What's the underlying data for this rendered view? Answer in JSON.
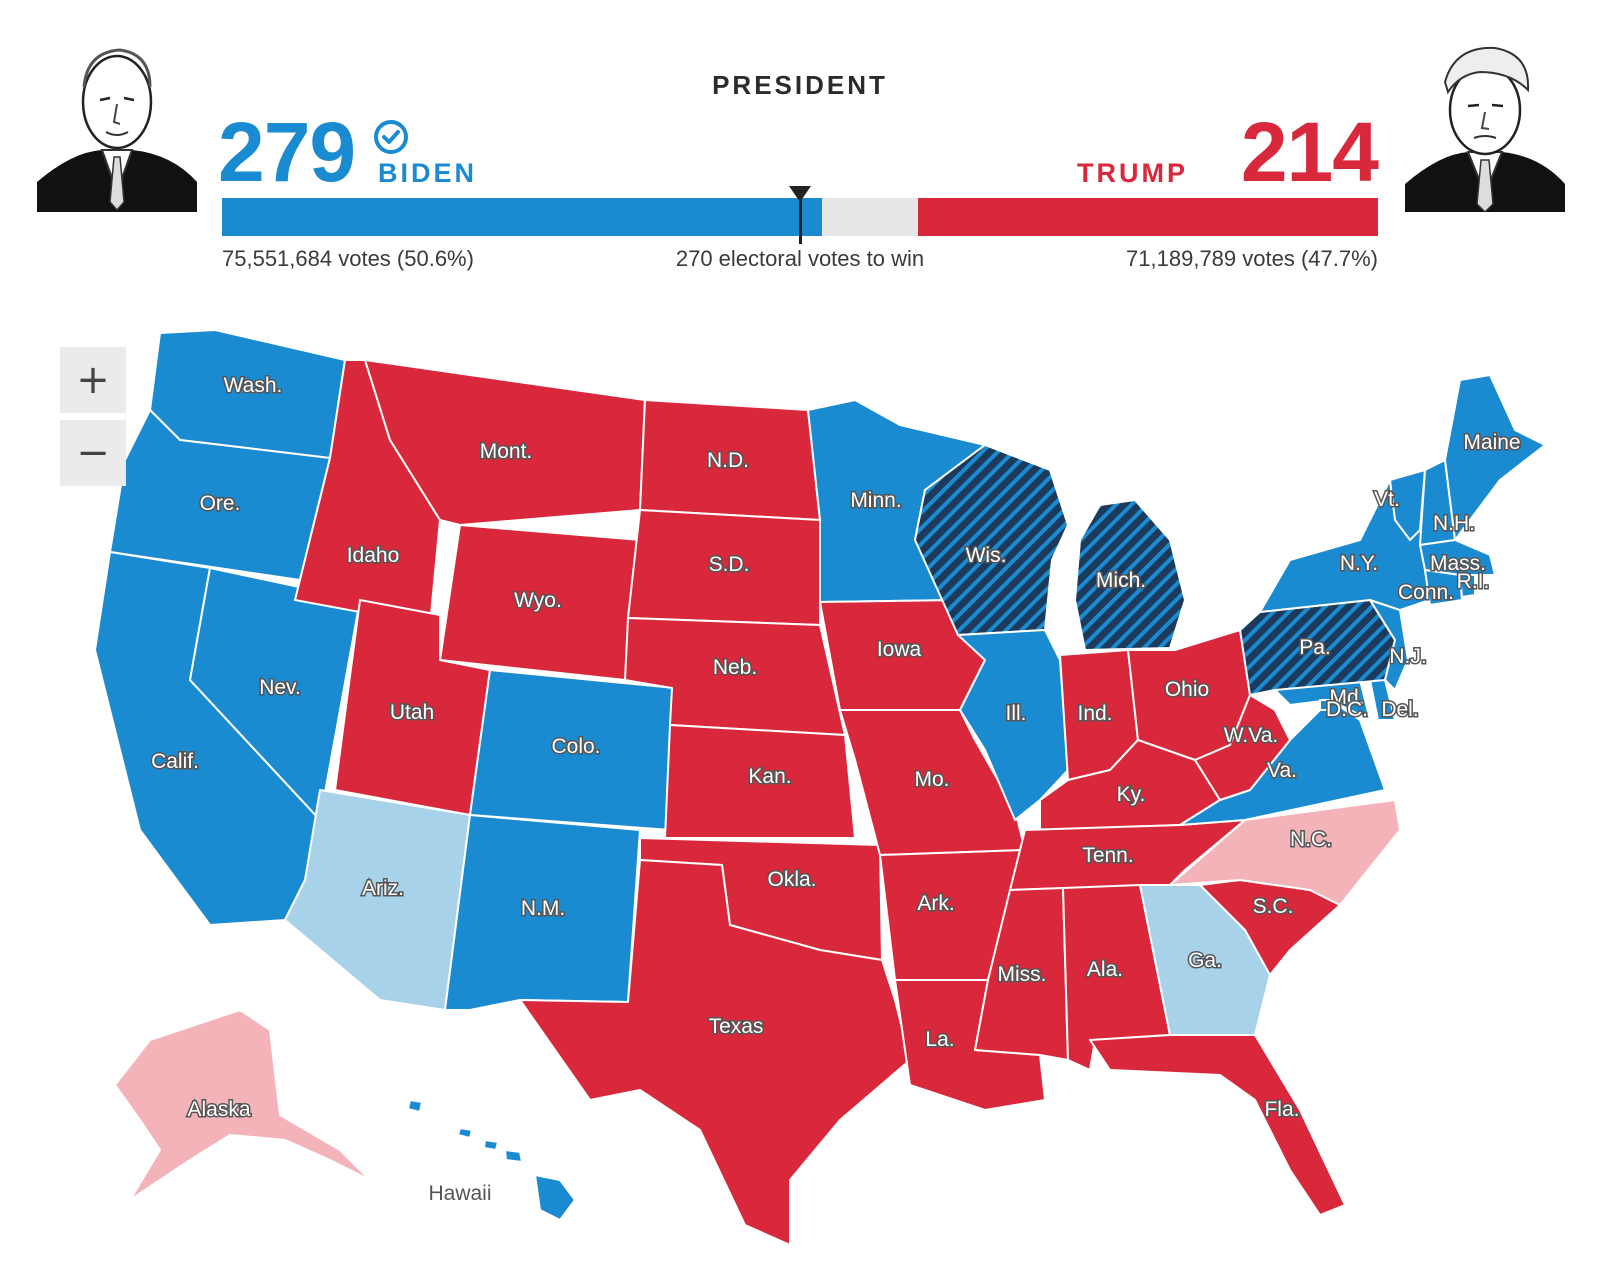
{
  "header": {
    "title": "PRESIDENT",
    "threshold_text": "270 electoral votes to win",
    "threshold_votes": 270,
    "total_electoral_votes": 538
  },
  "candidates": [
    {
      "id": "biden",
      "name": "BIDEN",
      "electoral_votes": "279",
      "votes_text": "75,551,684 votes (50.6%)",
      "color": "#1b8bd1",
      "winner": true,
      "icon": "check-badge-icon"
    },
    {
      "id": "trump",
      "name": "TRUMP",
      "electoral_votes": "214",
      "votes_text": "71,189,789 votes (47.7%)",
      "color": "#d9283b",
      "winner": false
    }
  ],
  "map": {
    "zoom_in_label": "+",
    "zoom_out_label": "−",
    "legend_colors": {
      "dem_won": "#1b8bd1",
      "dem_leading": "#a8d2ea",
      "rep_won": "#d9283b",
      "rep_leading": "#f4b3b8",
      "flipped_pending": "#1b3a5c"
    },
    "states": [
      {
        "abbr": "Wash.",
        "status": "dem_won"
      },
      {
        "abbr": "Ore.",
        "status": "dem_won"
      },
      {
        "abbr": "Calif.",
        "status": "dem_won"
      },
      {
        "abbr": "Nev.",
        "status": "dem_won"
      },
      {
        "abbr": "Idaho",
        "status": "rep_won"
      },
      {
        "abbr": "Mont.",
        "status": "rep_won"
      },
      {
        "abbr": "Wyo.",
        "status": "rep_won"
      },
      {
        "abbr": "Utah",
        "status": "rep_won"
      },
      {
        "abbr": "Ariz.",
        "status": "dem_leading"
      },
      {
        "abbr": "Colo.",
        "status": "dem_won"
      },
      {
        "abbr": "N.M.",
        "status": "dem_won"
      },
      {
        "abbr": "N.D.",
        "status": "rep_won"
      },
      {
        "abbr": "S.D.",
        "status": "rep_won"
      },
      {
        "abbr": "Neb.",
        "status": "rep_won"
      },
      {
        "abbr": "Kan.",
        "status": "rep_won"
      },
      {
        "abbr": "Okla.",
        "status": "rep_won"
      },
      {
        "abbr": "Texas",
        "status": "rep_won"
      },
      {
        "abbr": "Minn.",
        "status": "dem_won"
      },
      {
        "abbr": "Iowa",
        "status": "rep_won"
      },
      {
        "abbr": "Mo.",
        "status": "rep_won"
      },
      {
        "abbr": "Ark.",
        "status": "rep_won"
      },
      {
        "abbr": "La.",
        "status": "rep_won"
      },
      {
        "abbr": "Wis.",
        "status": "flipped_pending"
      },
      {
        "abbr": "Ill.",
        "status": "dem_won"
      },
      {
        "abbr": "Mich.",
        "status": "flipped_pending"
      },
      {
        "abbr": "Ind.",
        "status": "rep_won"
      },
      {
        "abbr": "Ohio",
        "status": "rep_won"
      },
      {
        "abbr": "Ky.",
        "status": "rep_won"
      },
      {
        "abbr": "Tenn.",
        "status": "rep_won"
      },
      {
        "abbr": "Miss.",
        "status": "rep_won"
      },
      {
        "abbr": "Ala.",
        "status": "rep_won"
      },
      {
        "abbr": "Ga.",
        "status": "dem_leading"
      },
      {
        "abbr": "Fla.",
        "status": "rep_won"
      },
      {
        "abbr": "S.C.",
        "status": "rep_won"
      },
      {
        "abbr": "N.C.",
        "status": "rep_leading"
      },
      {
        "abbr": "Va.",
        "status": "dem_won"
      },
      {
        "abbr": "W.Va.",
        "status": "rep_won"
      },
      {
        "abbr": "Pa.",
        "status": "flipped_pending"
      },
      {
        "abbr": "N.Y.",
        "status": "dem_won"
      },
      {
        "abbr": "Vt.",
        "status": "dem_won"
      },
      {
        "abbr": "N.H.",
        "status": "dem_won"
      },
      {
        "abbr": "Maine",
        "status": "dem_won"
      },
      {
        "abbr": "Mass.",
        "status": "dem_won"
      },
      {
        "abbr": "R.I.",
        "status": "dem_won"
      },
      {
        "abbr": "Conn.",
        "status": "dem_won"
      },
      {
        "abbr": "N.J.",
        "status": "dem_won"
      },
      {
        "abbr": "Del.",
        "status": "dem_won"
      },
      {
        "abbr": "Md.",
        "status": "dem_won"
      },
      {
        "abbr": "D.C.",
        "status": "dem_won"
      },
      {
        "abbr": "Alaska",
        "status": "rep_leading"
      },
      {
        "abbr": "Hawaii",
        "status": "dem_won"
      }
    ]
  }
}
